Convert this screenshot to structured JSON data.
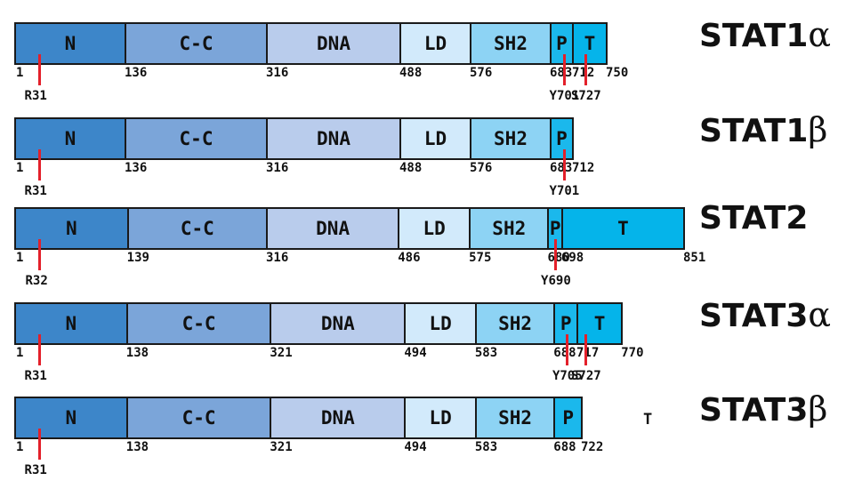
{
  "domain_colors": {
    "N": "#3d86c9",
    "C-C": "#7ba5d9",
    "DNA": "#b9ccec",
    "LD": "#d2eafb",
    "SH2": "#8dd3f4",
    "P": "#1bb8ec",
    "T": "#05b4ea"
  },
  "mutation_color": "#e3202a",
  "isoforms": [
    {
      "base": "STAT1",
      "suffix": "α",
      "domains": [
        {
          "label": "N",
          "start": 1,
          "end": 136
        },
        {
          "label": "C-C",
          "start": 136,
          "end": 316
        },
        {
          "label": "DNA",
          "start": 316,
          "end": 488
        },
        {
          "label": "LD",
          "start": 488,
          "end": 576
        },
        {
          "label": "SH2",
          "start": 576,
          "end": 683
        },
        {
          "label": "P",
          "start": 683,
          "end": 712
        },
        {
          "label": "T",
          "start": 712,
          "end": 750
        }
      ],
      "ticks": [
        "1",
        "136",
        "316",
        "488",
        "576",
        "683",
        "712",
        "750"
      ],
      "mutations": [
        {
          "label": "R31",
          "pos": 31
        },
        {
          "label": "Y701",
          "pos": 701
        },
        {
          "label": "S727",
          "pos": 727
        }
      ]
    },
    {
      "base": "STAT1",
      "suffix": "β",
      "domains": [
        {
          "label": "N",
          "start": 1,
          "end": 136
        },
        {
          "label": "C-C",
          "start": 136,
          "end": 316
        },
        {
          "label": "DNA",
          "start": 316,
          "end": 488
        },
        {
          "label": "LD",
          "start": 488,
          "end": 576
        },
        {
          "label": "SH2",
          "start": 576,
          "end": 683
        },
        {
          "label": "P",
          "start": 683,
          "end": 712
        }
      ],
      "ticks": [
        "1",
        "136",
        "316",
        "488",
        "576",
        "683",
        "712"
      ],
      "mutations": [
        {
          "label": "R31",
          "pos": 31
        },
        {
          "label": "Y701",
          "pos": 701
        }
      ]
    },
    {
      "base": "STAT2",
      "suffix": "",
      "domains": [
        {
          "label": "N",
          "start": 1,
          "end": 139
        },
        {
          "label": "C-C",
          "start": 139,
          "end": 316
        },
        {
          "label": "DNA",
          "start": 316,
          "end": 486
        },
        {
          "label": "LD",
          "start": 486,
          "end": 575
        },
        {
          "label": "SH2",
          "start": 575,
          "end": 680
        },
        {
          "label": "P",
          "start": 680,
          "end": 698
        },
        {
          "label": "T",
          "start": 698,
          "end": 851
        }
      ],
      "ticks": [
        "1",
        "139",
        "316",
        "486",
        "575",
        "680",
        "698",
        "851"
      ],
      "mutations": [
        {
          "label": "R32",
          "pos": 32
        },
        {
          "label": "Y690",
          "pos": 690
        }
      ]
    },
    {
      "base": "STAT3",
      "suffix": "α",
      "domains": [
        {
          "label": "N",
          "start": 1,
          "end": 138
        },
        {
          "label": "C-C",
          "start": 138,
          "end": 321
        },
        {
          "label": "DNA",
          "start": 321,
          "end": 494
        },
        {
          "label": "LD",
          "start": 494,
          "end": 583
        },
        {
          "label": "SH2",
          "start": 583,
          "end": 688
        },
        {
          "label": "P",
          "start": 688,
          "end": 717
        },
        {
          "label": "T",
          "start": 717,
          "end": 770
        }
      ],
      "ticks": [
        "1",
        "138",
        "321",
        "494",
        "583",
        "688",
        "717",
        "770"
      ],
      "mutations": [
        {
          "label": "R31",
          "pos": 31
        },
        {
          "label": "Y705",
          "pos": 705
        },
        {
          "label": "S727",
          "pos": 727
        }
      ]
    },
    {
      "base": "STAT3",
      "suffix": "β",
      "domains": [
        {
          "label": "N",
          "start": 1,
          "end": 138
        },
        {
          "label": "C-C",
          "start": 138,
          "end": 321
        },
        {
          "label": "DNA",
          "start": 321,
          "end": 494
        },
        {
          "label": "LD",
          "start": 494,
          "end": 583
        },
        {
          "label": "SH2",
          "start": 583,
          "end": 688
        },
        {
          "label": "P",
          "start": 688,
          "end": 722
        }
      ],
      "ticks": [
        "1",
        "138",
        "321",
        "494",
        "583",
        "688",
        "722"
      ],
      "mutations": [
        {
          "label": "R31",
          "pos": 31
        }
      ],
      "stray_label": "T"
    }
  ]
}
